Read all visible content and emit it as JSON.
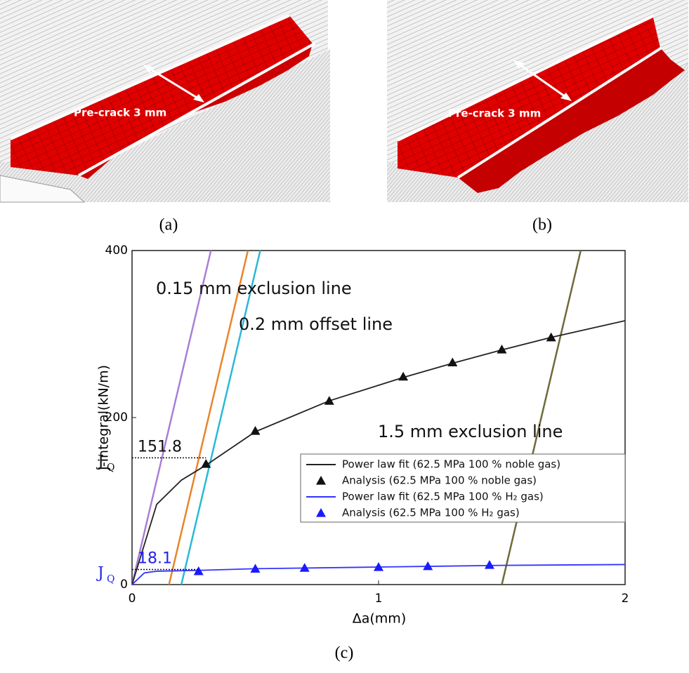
{
  "panels": [
    {
      "label": "Pre-crack 3 mm",
      "caption": "(a)"
    },
    {
      "label": "Pre-crack 3 mm",
      "caption": "(b)"
    }
  ],
  "chart_caption": "(c)",
  "chart_data": {
    "type": "line",
    "x_label": "Δa(mm)",
    "y_label": "J-integral(kN/m)",
    "xlim": [
      0,
      2
    ],
    "ylim": [
      0,
      400
    ],
    "xticks": [
      0,
      1,
      2
    ],
    "yticks": [
      0,
      200,
      400
    ],
    "series": [
      {
        "name": "Power law fit (62.5 MPa 100 % noble gas)",
        "color": "#222222",
        "marker": "none",
        "x": [
          0,
          0.1,
          0.2,
          0.3,
          0.5,
          0.8,
          1.1,
          1.3,
          1.5,
          1.7,
          2.0
        ],
        "values": [
          0,
          96,
          125,
          143,
          183,
          220,
          248,
          265,
          281,
          296,
          316
        ]
      },
      {
        "name": "Analysis (62.5 MPa 100 % noble gas)",
        "color": "#111111",
        "marker": "triangle",
        "x": [
          0.3,
          0.5,
          0.8,
          1.1,
          1.3,
          1.5,
          1.7
        ],
        "values": [
          144.5,
          184,
          220,
          249,
          266,
          281.5,
          296
        ]
      },
      {
        "name": "Power law fit (62.5 MPa 100 % H₂ gas)",
        "color": "#3333ff",
        "marker": "none",
        "x": [
          0,
          0.05,
          0.1,
          0.27,
          0.5,
          1.0,
          1.5,
          2.0
        ],
        "values": [
          0,
          14,
          16,
          17,
          19,
          21,
          23,
          24
        ]
      },
      {
        "name": "Analysis (62.5 MPa 100 % H₂ gas)",
        "color": "#1a1aff",
        "marker": "triangle",
        "x": [
          0.27,
          0.5,
          0.7,
          1.0,
          1.2,
          1.45
        ],
        "values": [
          16,
          19,
          20,
          21,
          22,
          23.5
        ]
      }
    ],
    "reference_lines": [
      {
        "color": "#a97fd6",
        "x": [
          0,
          0.32
        ],
        "values": [
          0,
          400
        ]
      },
      {
        "color": "#e8852a",
        "x": [
          0.15,
          0.47
        ],
        "values": [
          0,
          400
        ]
      },
      {
        "color": "#2bb8d8",
        "x": [
          0.2,
          0.52
        ],
        "values": [
          0,
          400
        ]
      },
      {
        "color": "#6e6a3a",
        "x": [
          1.5,
          1.82
        ],
        "values": [
          0,
          400
        ]
      }
    ],
    "annotations": [
      {
        "text": "0.15 mm exclusion line"
      },
      {
        "text": "0.2 mm offset line"
      },
      {
        "text": "1.5 mm exclusion line"
      }
    ],
    "jq_markers": [
      {
        "value": 151.8,
        "label": "151.8",
        "symbol": "J",
        "sub": "Q",
        "x": 0.3,
        "color": "#111111"
      },
      {
        "value": 18.1,
        "label": "18.1",
        "symbol": "J",
        "sub": "Q",
        "x": 0.27,
        "color": "#2222ee"
      }
    ]
  }
}
